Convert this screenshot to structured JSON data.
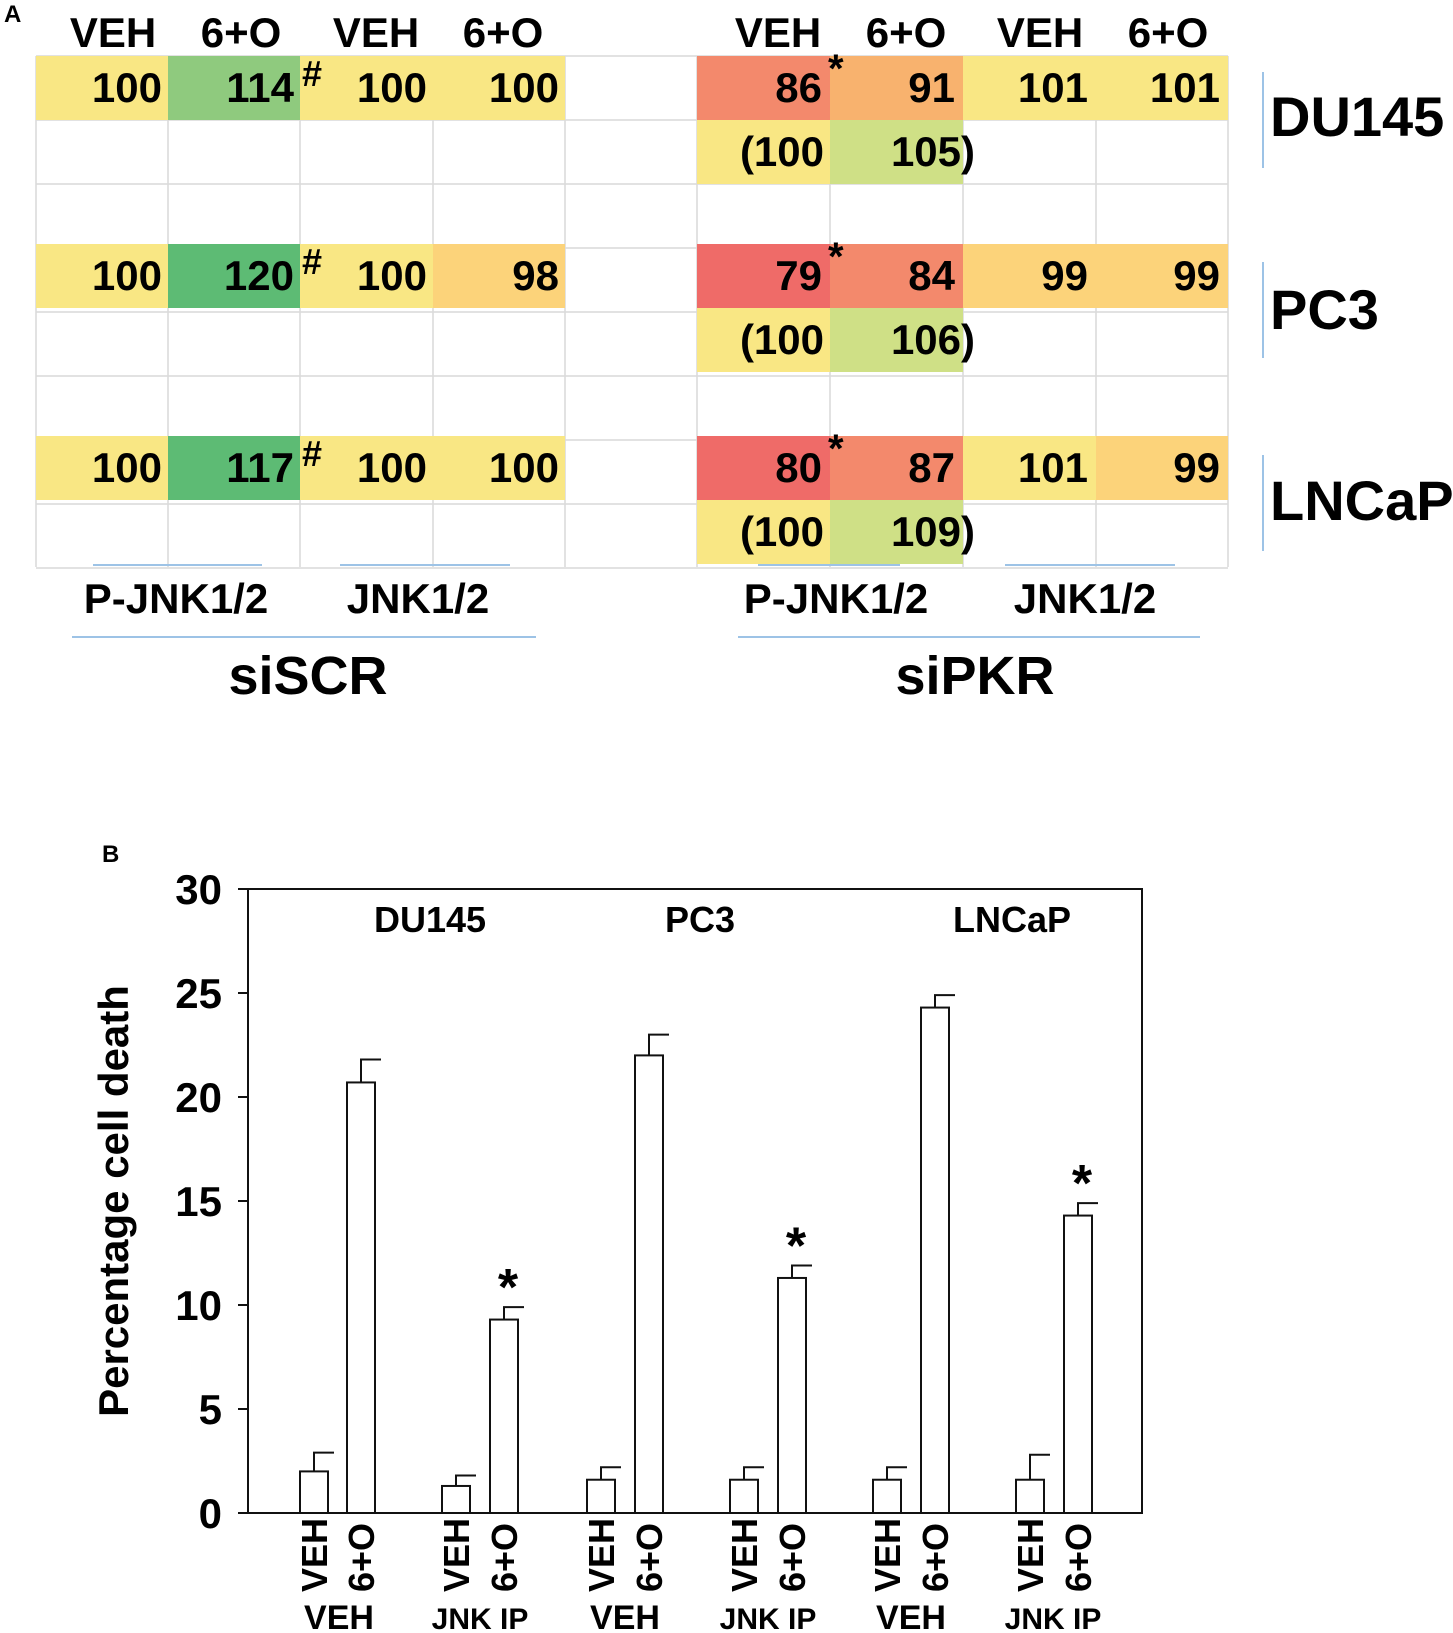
{
  "panel_a": {
    "label": "A",
    "headers": [
      "VEH",
      "6+O",
      "VEH",
      "6+O",
      "VEH",
      "6+O",
      "VEH",
      "6+O"
    ],
    "group_labels": [
      {
        "antibodies": [
          "P-JNK1/2",
          "JNK1/2"
        ],
        "condition": "siSCR"
      },
      {
        "antibodies": [
          "P-JNK1/2",
          "JNK1/2"
        ],
        "condition": "siPKR"
      }
    ],
    "rows": [
      {
        "cell_line": "DU145",
        "siSCR": [
          "100",
          "114",
          "100",
          "100"
        ],
        "siSCR_mark": "#",
        "siPKR": [
          "86",
          "91",
          "101",
          "101"
        ],
        "siPKR_mark": "*",
        "siPKR_norm": [
          "(100",
          "105)"
        ]
      },
      {
        "cell_line": "PC3",
        "siSCR": [
          "100",
          "120",
          "100",
          "98"
        ],
        "siSCR_mark": "#",
        "siPKR": [
          "79",
          "84",
          "99",
          "99"
        ],
        "siPKR_mark": "*",
        "siPKR_norm": [
          "(100",
          "106)"
        ]
      },
      {
        "cell_line": "LNCaP",
        "siSCR": [
          "100",
          "117",
          "100",
          "100"
        ],
        "siSCR_mark": "#",
        "siPKR": [
          "80",
          "87",
          "101",
          "99"
        ],
        "siPKR_mark": "*",
        "siPKR_norm": [
          "(100",
          "109)"
        ]
      }
    ],
    "colors": {
      "yellow": "#f9e784",
      "light_orange": "#fcd37a",
      "light_green": "#cfe086",
      "green_mid": "#8fca7e",
      "green_strong": "#5dbb74",
      "orange": "#f8b26e",
      "orange_red": "#f3896c",
      "red": "#ef6b68"
    }
  },
  "chart_data": {
    "type": "bar",
    "panel_label": "B",
    "ylabel": "Percentage cell death",
    "ylim": [
      0,
      30
    ],
    "yticks": [
      "0",
      "5",
      "10",
      "15",
      "20",
      "25",
      "30"
    ],
    "groups": [
      {
        "name": "DU145",
        "categories": [
          "VEH",
          "6+O",
          "VEH",
          "6+O"
        ],
        "pretreatment": [
          "VEH",
          "JNK IP"
        ],
        "values": [
          2.0,
          20.7,
          1.3,
          9.3
        ],
        "errors": [
          0.9,
          1.1,
          0.5,
          0.6
        ],
        "significance": [
          "",
          "",
          "",
          "*"
        ]
      },
      {
        "name": "PC3",
        "categories": [
          "VEH",
          "6+O",
          "VEH",
          "6+O"
        ],
        "pretreatment": [
          "VEH",
          "JNK IP"
        ],
        "values": [
          1.6,
          22.0,
          1.6,
          11.3
        ],
        "errors": [
          0.6,
          1.0,
          0.6,
          0.6
        ],
        "significance": [
          "",
          "",
          "",
          "*"
        ]
      },
      {
        "name": "LNCaP",
        "categories": [
          "VEH",
          "6+O",
          "VEH",
          "6+O"
        ],
        "pretreatment": [
          "VEH",
          "JNK IP"
        ],
        "values": [
          1.6,
          24.3,
          1.6,
          14.3
        ],
        "errors": [
          0.6,
          0.6,
          1.2,
          0.6
        ],
        "significance": [
          "",
          "",
          "",
          "*"
        ]
      }
    ]
  }
}
